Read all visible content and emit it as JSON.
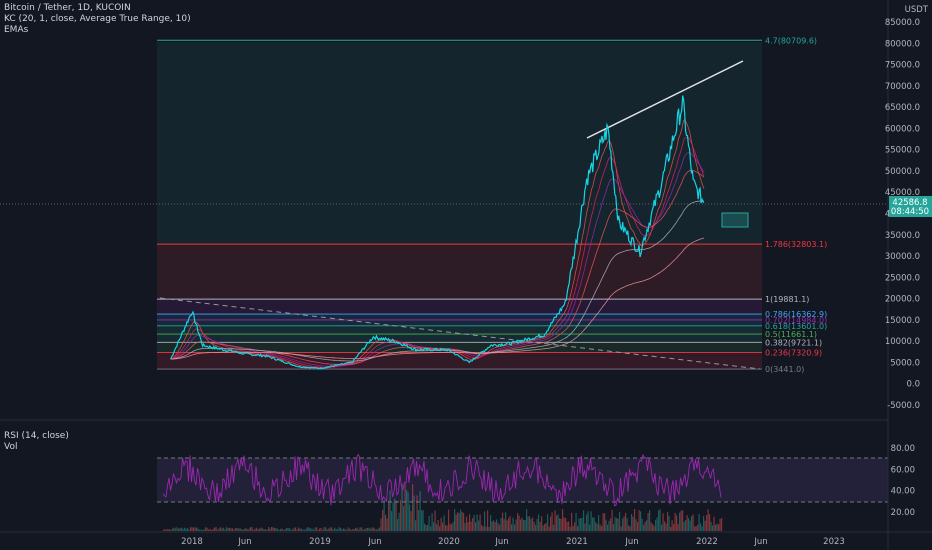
{
  "legend": {
    "title": "Bitcoin / Tether, 1D, KUCOIN",
    "kc": "KC (20, 1, close, Average True Range, 10)",
    "emas": "EMAs",
    "rsi": "RSI (14, close)",
    "vol": "Vol"
  },
  "price_axis": {
    "unit": "USDT",
    "ticks": [
      "85000.0",
      "80000.0",
      "75000.0",
      "70000.0",
      "65000.0",
      "60000.0",
      "55000.0",
      "50000.0",
      "45000.0",
      "40000.0",
      "35000.0",
      "30000.0",
      "25000.0",
      "20000.0",
      "15000.0",
      "10000.0",
      "5000.0",
      "0.0",
      "-5000.0"
    ],
    "current_price": "42586.8",
    "countdown": "08:44:50"
  },
  "rsi_axis": {
    "ticks": [
      "80.00",
      "60.00",
      "40.00",
      "20.00"
    ],
    "upper_band": 70,
    "lower_band": 30
  },
  "time_axis": {
    "ticks": [
      "2018",
      "Jun",
      "2019",
      "Jun",
      "2020",
      "Jun",
      "2021",
      "Jun",
      "2022",
      "Jun",
      "2023"
    ]
  },
  "fib_levels": [
    {
      "label": "4.7(80709.6)",
      "price": 80709.6,
      "color": "#26a69a"
    },
    {
      "label": "1.786(32803.1)",
      "price": 32803.1,
      "color": "#f23645"
    },
    {
      "label": "1(19881.1)",
      "price": 19881.1,
      "color": "#b2b5be"
    },
    {
      "label": "0.786(16362.9)",
      "price": 16362.9,
      "color": "#42a5f5"
    },
    {
      "label": "0.702(14984.0)",
      "price": 14984.0,
      "color": "#9c27b0"
    },
    {
      "label": "0.618(13601.0)",
      "price": 13601.0,
      "color": "#26a69a"
    },
    {
      "label": "0.5(11661.1)",
      "price": 11661.1,
      "color": "#4caf50"
    },
    {
      "label": "0.382(9721.1)",
      "price": 9721.1,
      "color": "#b2b5be"
    },
    {
      "label": "0.236(7320.9)",
      "price": 7320.9,
      "color": "#f23645"
    },
    {
      "label": "0(3441.0)",
      "price": 3441.0,
      "color": "#787b86"
    }
  ],
  "chart_data": {
    "type": "line",
    "title": "Bitcoin / Tether, 1D, KUCOIN",
    "x": [
      "2017-11",
      "2018-01",
      "2018-02",
      "2018-04",
      "2018-06",
      "2018-08",
      "2018-11",
      "2019-01",
      "2019-04",
      "2019-06",
      "2019-08",
      "2019-10",
      "2020-01",
      "2020-03",
      "2020-05",
      "2020-07",
      "2020-10",
      "2020-12",
      "2021-01",
      "2021-02",
      "2021-04",
      "2021-05",
      "2021-07",
      "2021-09",
      "2021-11",
      "2021-12",
      "2022-01"
    ],
    "series": [
      {
        "values": [
          5800,
          17000,
          9000,
          8000,
          7000,
          6500,
          4000,
          3600,
          5000,
          11000,
          10000,
          8000,
          8000,
          5000,
          9000,
          9500,
          11500,
          19000,
          33000,
          48000,
          60000,
          38000,
          31000,
          47000,
          66000,
          47000,
          42586.8
        ]
      }
    ],
    "ylim": [
      -5000,
      85000
    ],
    "rsi_ylim": [
      10,
      90
    ],
    "grid": false
  }
}
